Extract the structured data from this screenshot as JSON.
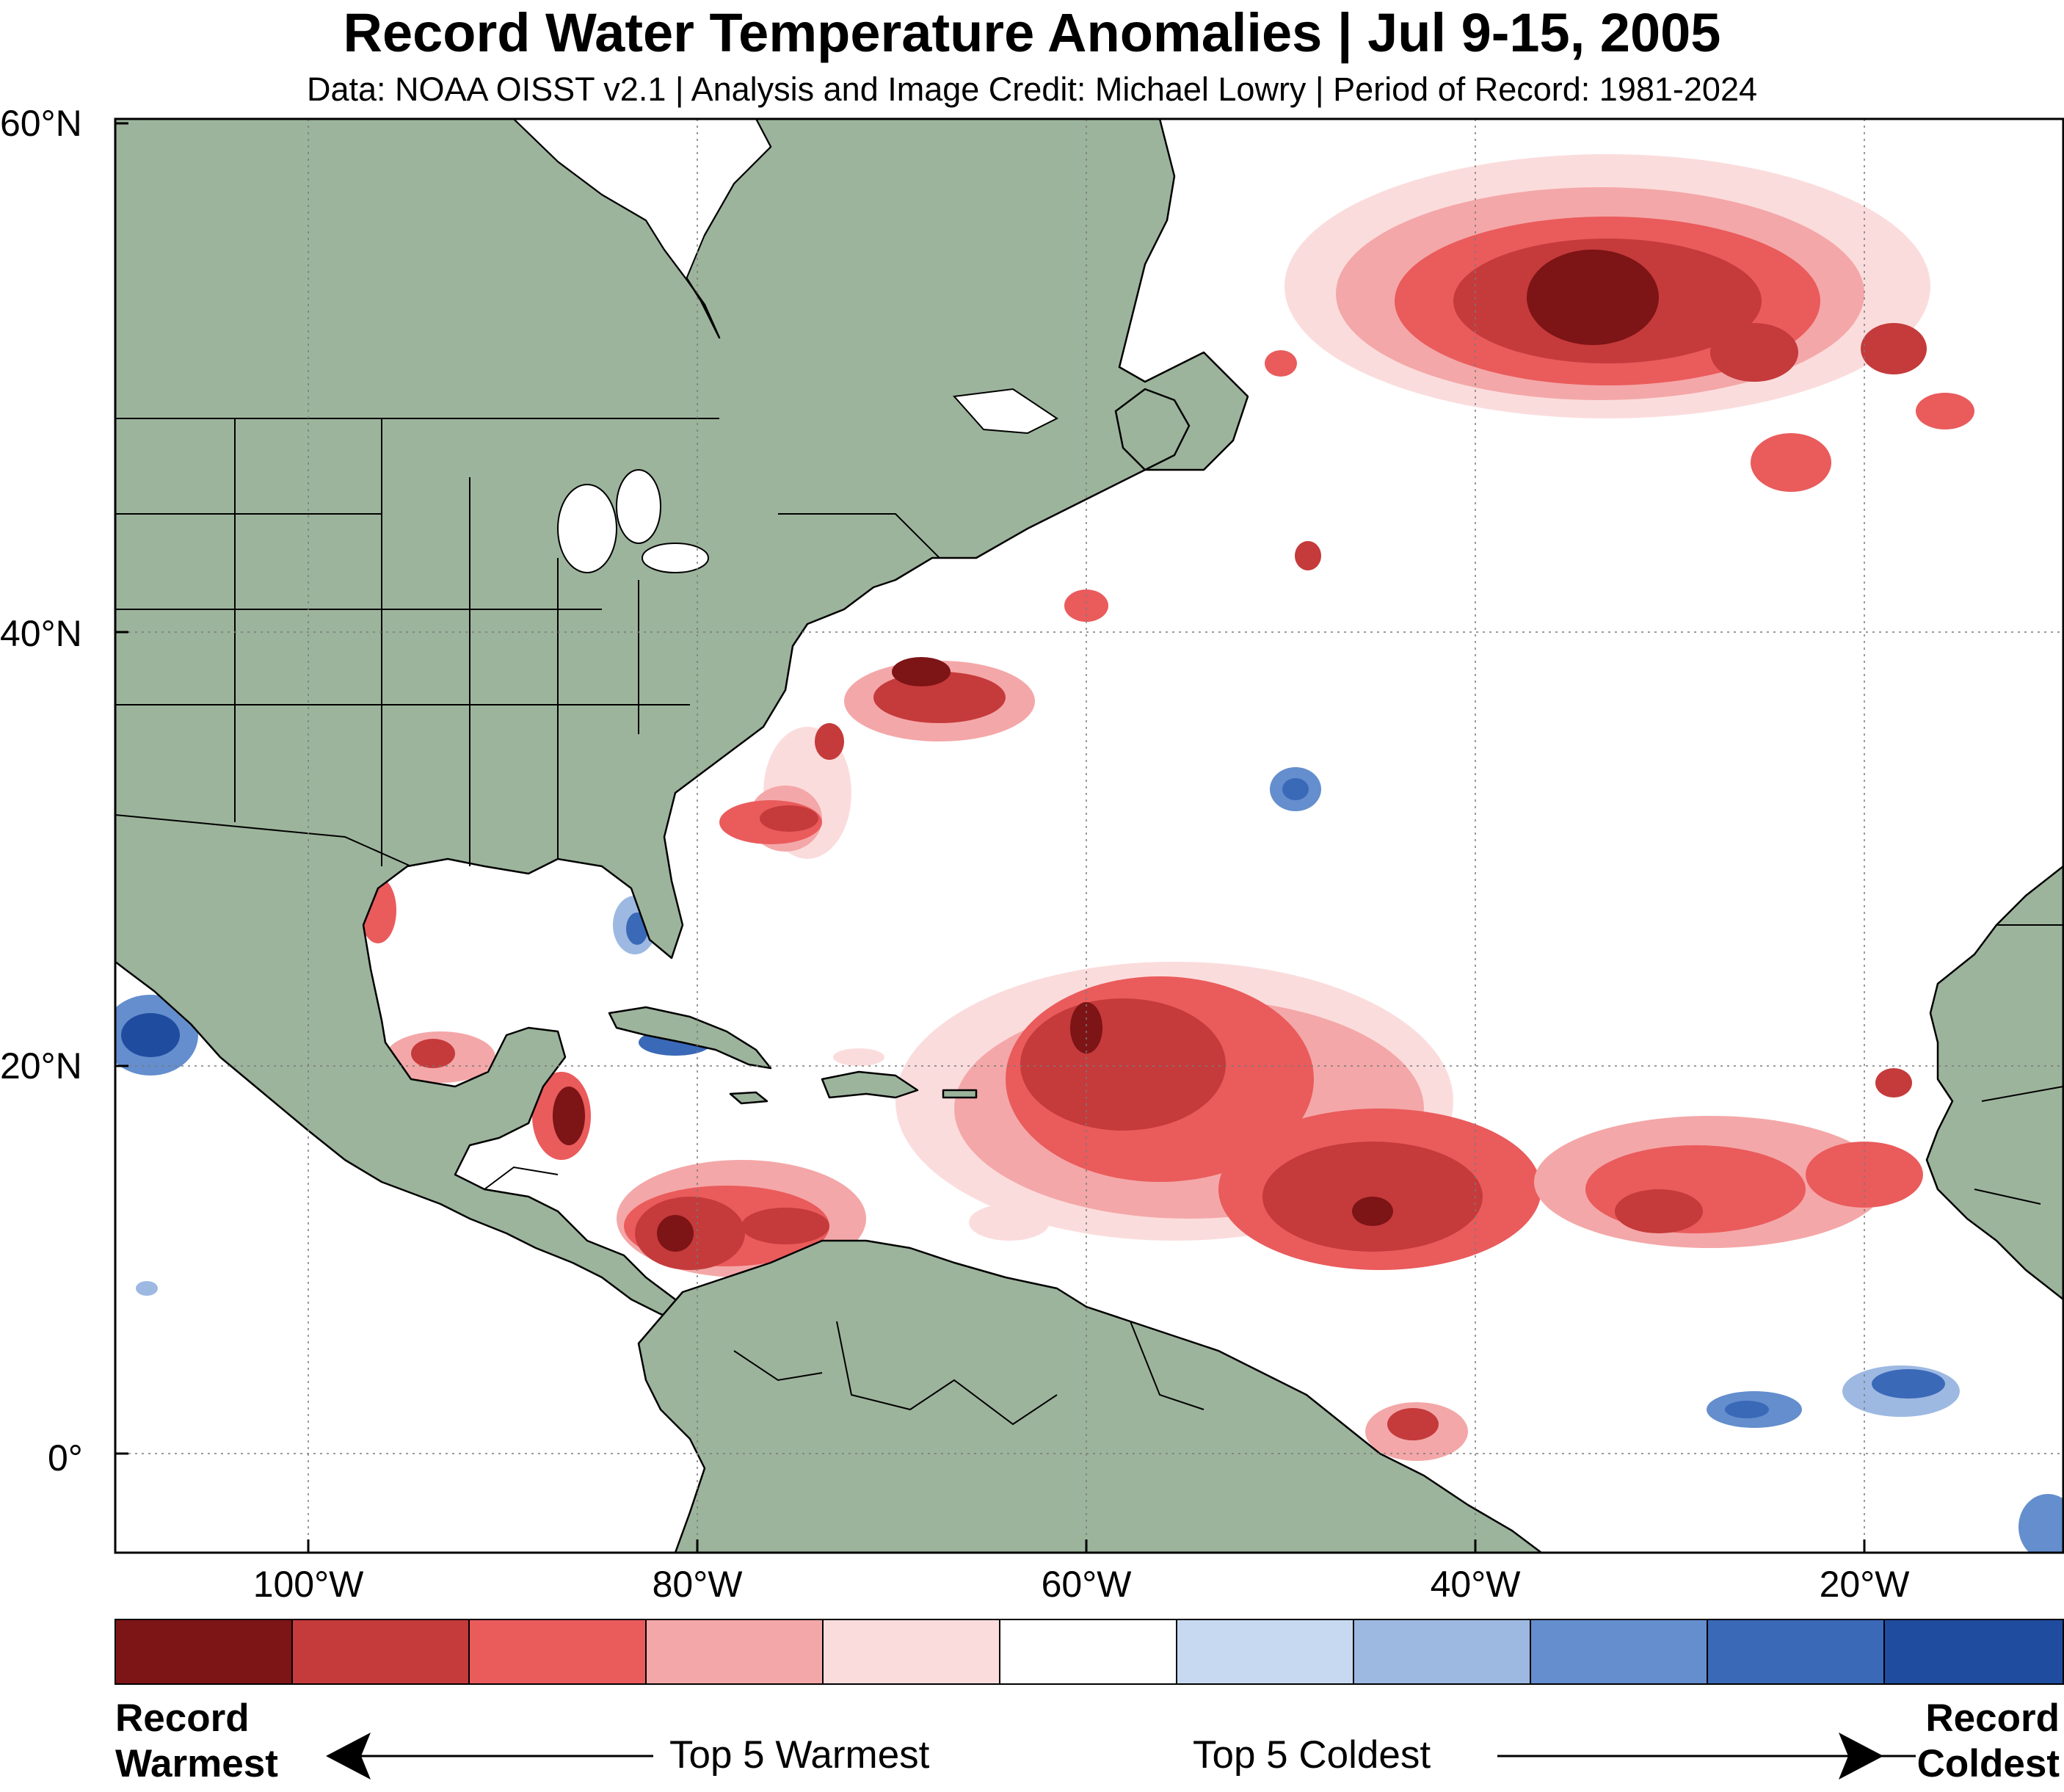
{
  "title": "Record Water Temperature Anomalies | Jul 9-15, 2005",
  "subtitle": "Data: NOAA OISST v2.1 | Analysis and Image Credit: Michael Lowry | Period of Record: 1981-2024",
  "map": {
    "region": "North Atlantic, Gulf of Mexico and Caribbean",
    "lon_range": [
      -110,
      -10
    ],
    "lat_range": [
      -5,
      60
    ],
    "land_color": "#9db49c",
    "ocean_color": "#ffffff",
    "grid": true,
    "lat_ticks": [
      "60°N",
      "40°N",
      "20°N",
      "0°"
    ],
    "lon_ticks": [
      "100°W",
      "80°W",
      "60°W",
      "40°W",
      "20°W"
    ]
  },
  "legend": {
    "colors": [
      "#7d1416",
      "#c53a3b",
      "#ea5b5c",
      "#f4a7a8",
      "#fbdcdc",
      "#ffffff",
      "#c7d9f0",
      "#9db9e2",
      "#648ecd",
      "#3a69b8",
      "#1f4c9f"
    ],
    "left_end": [
      "Record",
      "Warmest"
    ],
    "right_end": [
      "Record",
      "Coldest"
    ],
    "warm_label": "Top 5 Warmest",
    "cold_label": "Top 5 Coldest"
  }
}
